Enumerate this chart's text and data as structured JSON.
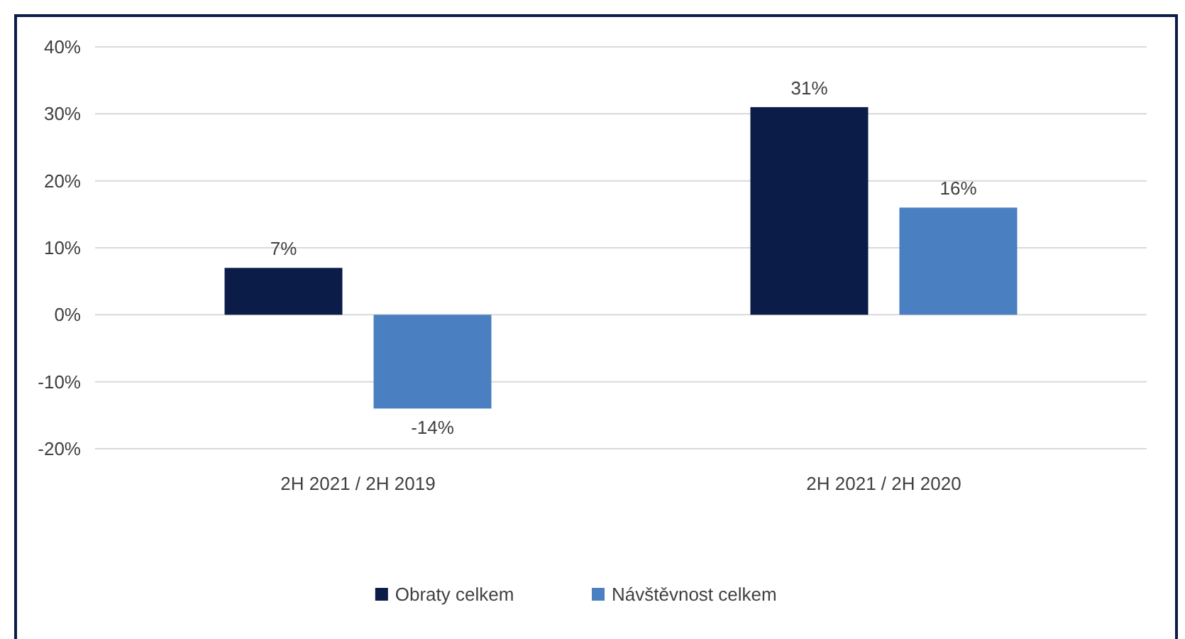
{
  "chart_data": {
    "type": "bar",
    "categories": [
      "2H 2021 / 2H 2019",
      "2H 2021 / 2H 2020"
    ],
    "series": [
      {
        "name": "Obraty celkem",
        "color": "#0b1c48",
        "values": [
          7,
          31
        ],
        "value_labels": [
          "7%",
          "31%"
        ]
      },
      {
        "name": "Návštěvnost celkem",
        "color": "#4a7fc1",
        "values": [
          -14,
          16
        ],
        "value_labels": [
          "-14%",
          "16%"
        ]
      }
    ],
    "ylim": [
      -20,
      40
    ],
    "yticks": [
      {
        "value": -20,
        "label": "-20%"
      },
      {
        "value": -10,
        "label": "-10%"
      },
      {
        "value": 0,
        "label": "0%"
      },
      {
        "value": 10,
        "label": "10%"
      },
      {
        "value": 20,
        "label": "20%"
      },
      {
        "value": 30,
        "label": "30%"
      },
      {
        "value": 40,
        "label": "40%"
      }
    ],
    "grid": "y",
    "legend": "bottom"
  }
}
